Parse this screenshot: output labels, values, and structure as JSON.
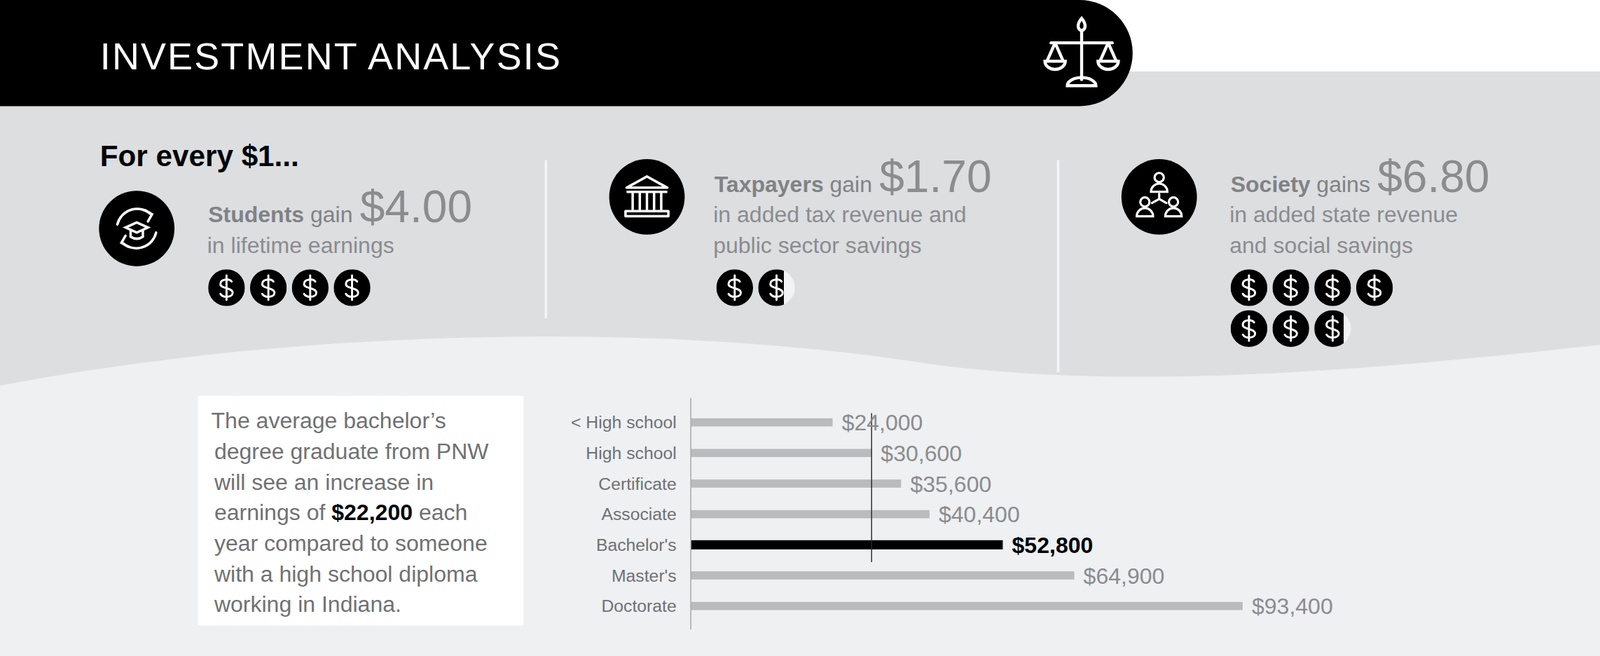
{
  "header": {
    "title": "INVESTMENT ANALYSIS"
  },
  "intro": "For every $1...",
  "stats": [
    {
      "who": "Students",
      "verb": "gain",
      "amount": 4.0,
      "amount_label": "$4.00",
      "lines": [
        "in lifetime earnings"
      ]
    },
    {
      "who": "Taxpayers",
      "verb": "gain",
      "amount": 1.7,
      "amount_label": "$1.70",
      "lines": [
        "in added tax revenue and",
        "public sector savings"
      ]
    },
    {
      "who": "Society",
      "verb": "gains",
      "amount": 6.8,
      "amount_label": "$6.80",
      "lines": [
        "in added state revenue",
        "and social savings"
      ]
    }
  ],
  "callout": {
    "before": "The average bachelor’s degree graduate from PNW will see an increase in earnings of",
    "highlight": "$22,200",
    "after": "each year compared to someone with a high school diploma working in Indiana."
  },
  "chart_data": {
    "type": "bar",
    "orientation": "horizontal",
    "categories": [
      "< High school",
      "High school",
      "Certificate",
      "Associate",
      "Bachelor's",
      "Master's",
      "Doctorate"
    ],
    "values": [
      24000,
      30600,
      35600,
      40400,
      52800,
      64900,
      93400
    ],
    "value_labels": [
      "$24,000",
      "$30,600",
      "$35,600",
      "$40,400",
      "$52,800",
      "$64,900",
      "$93,400"
    ],
    "colors": [
      "#b9bbbd",
      "#b9bbbd",
      "#b9bbbd",
      "#b9bbbd",
      "#000000",
      "#b9bbbd",
      "#b9bbbd"
    ],
    "xlim": [
      0,
      100000
    ],
    "data_labels": true,
    "tick_labels": "y"
  }
}
